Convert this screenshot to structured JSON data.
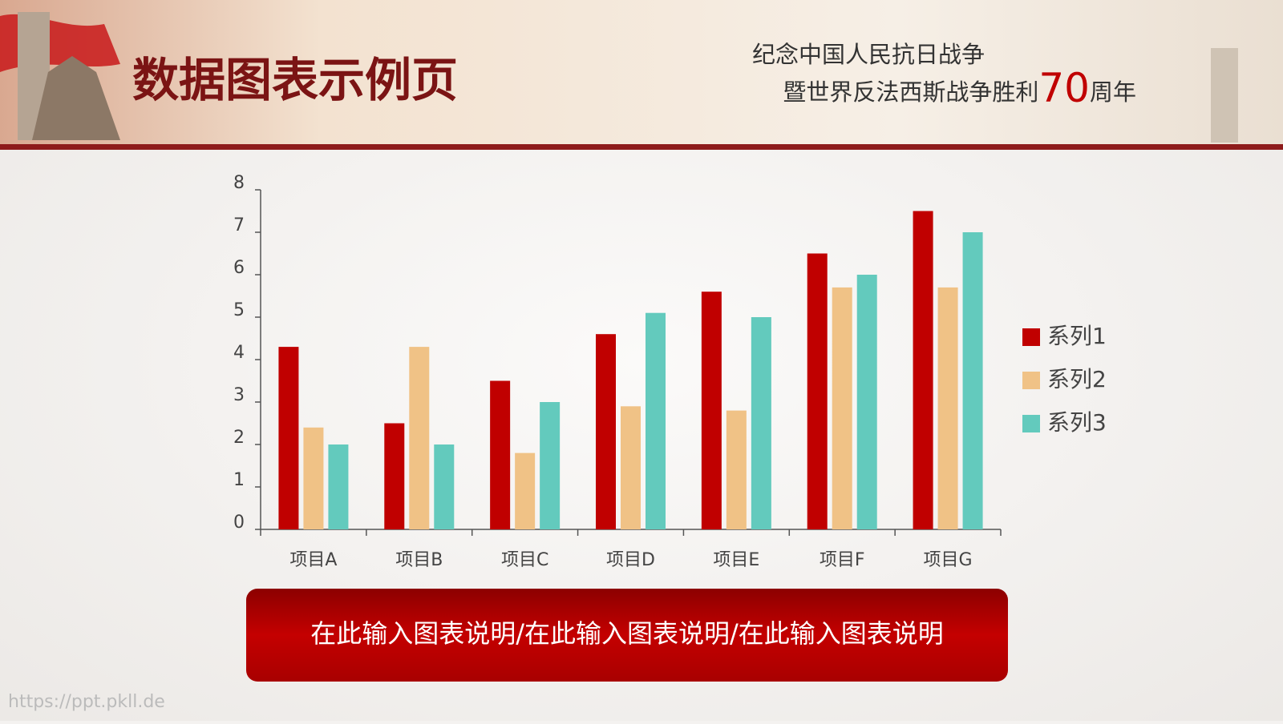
{
  "page": {
    "title": "数据图表示例页",
    "subtitle_line1": "纪念中国人民抗日战争",
    "subtitle_line2": [
      "暨世界反法西斯战争胜利",
      "70",
      "周年"
    ],
    "caption": "在此输入图表说明/在此输入图表说明/在此输入图表说明",
    "watermark": "https://ppt.pkll.de"
  },
  "chart_data": {
    "type": "bar",
    "categories": [
      "项目A",
      "项目B",
      "项目C",
      "项目D",
      "项目E",
      "项目F",
      "项目G"
    ],
    "series": [
      {
        "name": "系列1",
        "color": "#c00000",
        "values": [
          4.3,
          2.5,
          3.5,
          4.6,
          5.6,
          6.5,
          7.5
        ]
      },
      {
        "name": "系列2",
        "color": "#f0c286",
        "values": [
          2.4,
          4.3,
          1.8,
          2.9,
          2.8,
          5.7,
          5.7
        ]
      },
      {
        "name": "系列3",
        "color": "#63cabd",
        "values": [
          2.0,
          2.0,
          3.0,
          5.1,
          5.0,
          6.0,
          7.0
        ]
      }
    ],
    "ylim": [
      0,
      8
    ],
    "yticks": [
      0,
      1,
      2,
      3,
      4,
      5,
      6,
      7,
      8
    ],
    "grid": false,
    "legend": "right"
  }
}
